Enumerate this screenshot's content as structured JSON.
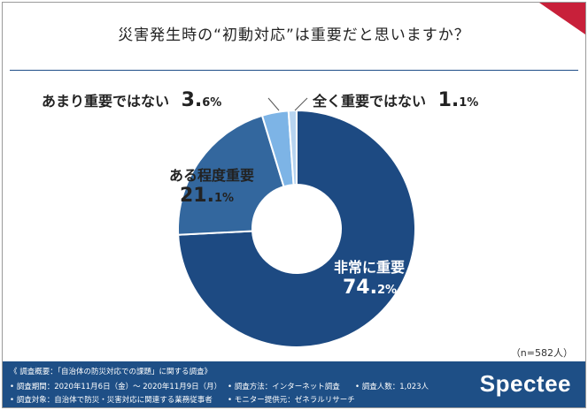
{
  "title": "災害発生時の“初動対応”は重要だと思いますか？",
  "chart_data": {
    "type": "pie",
    "donut": true,
    "title": "災害発生時の“初動対応”は重要だと思いますか？",
    "categories": [
      "非常に重要",
      "ある程度重要",
      "あまり重要ではない",
      "全く重要ではない"
    ],
    "values": [
      74.2,
      21.1,
      3.6,
      1.1
    ],
    "colors": [
      "#1d4a82",
      "#33679e",
      "#7db4e6",
      "#b7d4f0"
    ],
    "labels": [
      {
        "name": "非常に重要",
        "num": "74.",
        "pct": "2%"
      },
      {
        "name": "ある程度重要",
        "num": "21.",
        "pct": "1%"
      },
      {
        "name": "あまり重要ではない",
        "num": "3.",
        "pct": "6%"
      },
      {
        "name": "全く重要ではない",
        "num": "1.",
        "pct": "1%"
      }
    ]
  },
  "note": "（n=582人）",
  "footer": {
    "overview": "《 調査概要：「自治体の防災対応での課題」に関する調査》",
    "period": "• 調査期間：2020年11月6日（金）〜 2020年11月9日（月）",
    "method": "• 調査方法：インターネット調査",
    "count": "• 調査人数：1,023人",
    "target": "• 調査対象：自治体で防災・災害対応に関連する業務従事者",
    "provider": "• モニター提供元：ゼネラルリサーチ"
  },
  "logo": "Spectee"
}
